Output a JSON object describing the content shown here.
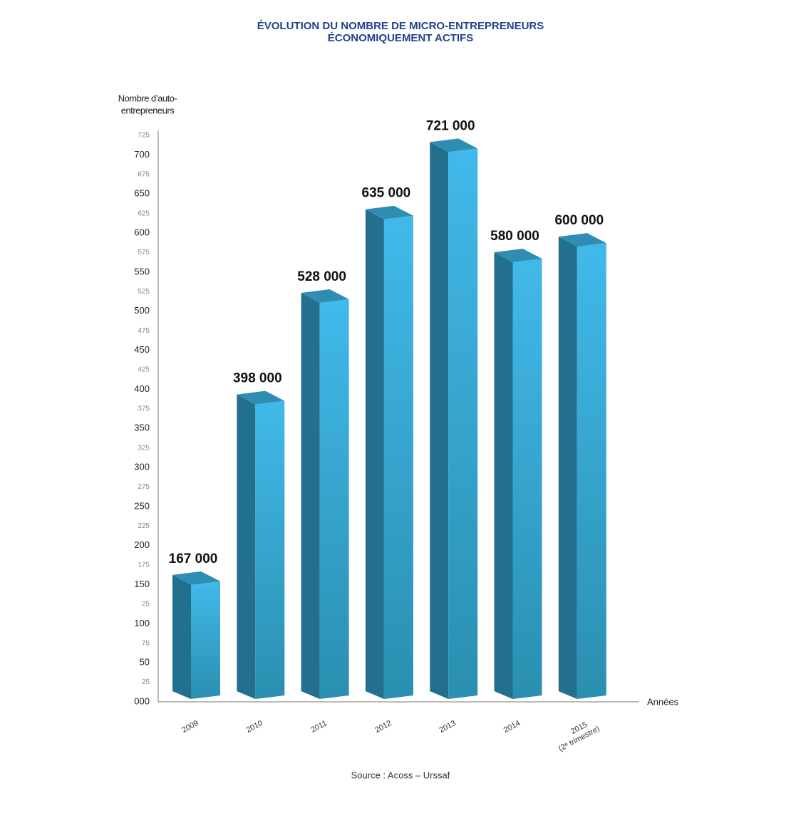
{
  "chart_data": {
    "type": "bar3d",
    "title": [
      "ÉVOLUTION DU NOMBRE DE MICRO-ENTREPRENEURS",
      "ÉCONOMIQUEMENT ACTIFS"
    ],
    "y_label": [
      "Nombre d’auto-",
      "entrepreneurs"
    ],
    "x_label": "Années",
    "source": "Source : Acoss – Urssaf",
    "categories": [
      "2009",
      "2010",
      "2011",
      "2012",
      "2013",
      "2014",
      [
        "2015",
        "(2ᵉ trimestre)"
      ]
    ],
    "values": [
      167,
      398,
      528,
      635,
      721,
      580,
      600
    ],
    "value_labels": [
      "167 000",
      "398 000",
      "528 000",
      "635 000",
      "721 000",
      "580 000",
      "600 000"
    ],
    "color": "#3db5e6",
    "ylim": [
      0,
      725
    ],
    "yticks": [
      {
        "value": 0,
        "label": "000"
      },
      25,
      50,
      75,
      100,
      {
        "value": 125,
        "label": "25"
      },
      150,
      175,
      200,
      225,
      250,
      275,
      300,
      325,
      350,
      375,
      400,
      425,
      450,
      475,
      500,
      525,
      550,
      575,
      600,
      625,
      650,
      675,
      700,
      725
    ],
    "grid": false
  }
}
